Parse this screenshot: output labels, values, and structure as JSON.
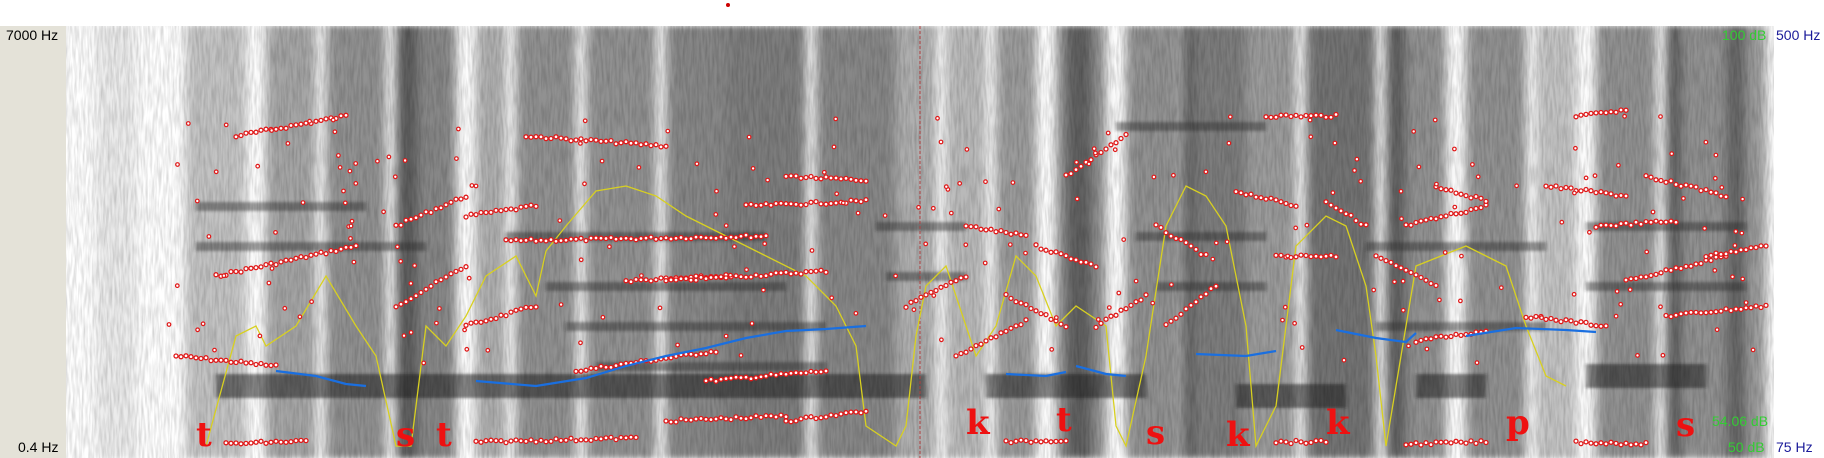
{
  "axis": {
    "freq_top": "7000 Hz",
    "freq_bottom": "0.4 Hz",
    "intensity_top": "100 dB",
    "intensity_current": "54.06 dB",
    "intensity_bottom": "50 dB",
    "pitch_top": "500 Hz",
    "pitch_bottom": "75 Hz"
  },
  "phonemes": [
    "t",
    "s",
    "t",
    "k",
    "t",
    "s",
    "k",
    "k",
    "p",
    "s"
  ],
  "colors": {
    "formant": "#e01818",
    "pitch": "#1a6fe0",
    "intensity": "#d8d020",
    "cursor": "#b04040",
    "phoneme_text": "#ee1111"
  }
}
